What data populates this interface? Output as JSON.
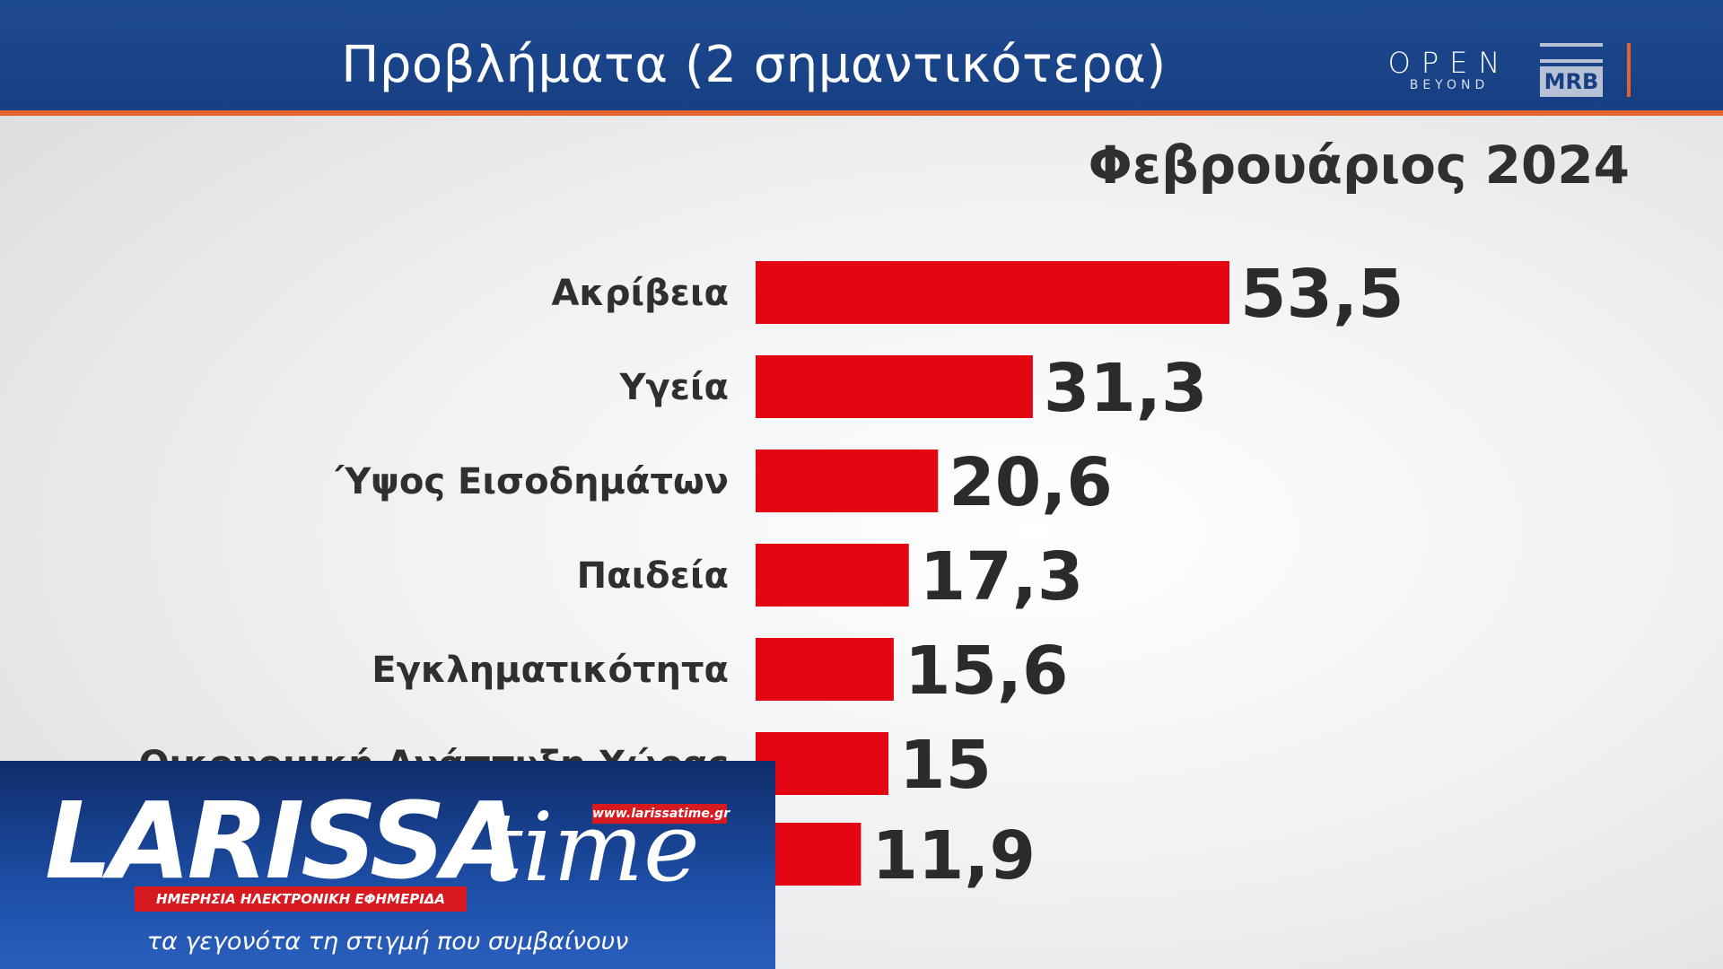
{
  "header": {
    "title": "Προβλήματα (2 σημαντικότερα)"
  },
  "logos": {
    "open": {
      "main": "OPEN",
      "sub": "BEYOND"
    },
    "mrb": "MRB"
  },
  "date_label": "Φεβρουάριος 2024",
  "chart_data": {
    "type": "bar",
    "orientation": "horizontal",
    "categories": [
      "Ακρίβεια",
      "Υγεία",
      "Ύψος Εισοδημάτων",
      "Παιδεία",
      "Εγκληματικότητα",
      "Οικονομική Ανάπτυξη Χώρας",
      ""
    ],
    "values": [
      53.5,
      31.3,
      20.6,
      17.3,
      15.6,
      15,
      11.9
    ],
    "value_labels": [
      "53,5",
      "31,3",
      "20,6",
      "17,3",
      "15,6",
      "15",
      "11,9"
    ],
    "bar_color": "#e30613",
    "xlim": [
      0,
      53.5
    ]
  },
  "overlay": {
    "brand_left": "LARISSA",
    "brand_right": "time",
    "url": "www.larissatime.gr",
    "subtitle": "ΗΜΕΡΗΣΙΑ ΗΛΕΚΤΡΟΝΙΚΗ ΕΦΗΜΕΡΙΔΑ",
    "slogan": "τα γεγονότα τη στιγμή που συμβαίνουν"
  }
}
